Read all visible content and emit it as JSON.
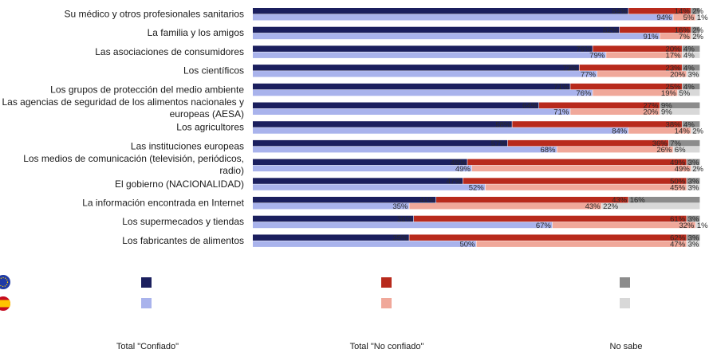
{
  "chart_data": {
    "type": "bar",
    "stacked": true,
    "orientation": "horizontal",
    "xlim": [
      0,
      100
    ],
    "categories": [
      "Su médico y otros profesionales sanitarios",
      "La familia y los amigos",
      "Las asociaciones de consumidores",
      "Los científicos",
      "Los grupos de protección del medio ambiente",
      "Las agencias de seguridad de los alimentos nacionales y europeas (AESA)",
      "Los agricultores",
      "Las instituciones europeas",
      "Los medios de comunicación (televisión, periódicos, radio)",
      "El gobierno (NACIONALIDAD)",
      "La información encontrada en Internet",
      "Los supermecados y tiendas",
      "Los fabricantes de alimentos"
    ],
    "groups": [
      {
        "flag": "eu-flag-icon",
        "series": [
          {
            "name": "Total \"Confiado\"",
            "color": "#1b1f5e",
            "values": [
              84,
              82,
              76,
              73,
              71,
              64,
              58,
              57,
              48,
              47,
              41,
              36,
              35
            ]
          },
          {
            "name": "Total \"No confiado\"",
            "color": "#b82a1c",
            "values": [
              14,
              16,
              20,
              23,
              25,
              27,
              38,
              36,
              49,
              50,
              43,
              61,
              62
            ]
          },
          {
            "name": "No sabe",
            "color": "#8c8c8c",
            "values": [
              2,
              2,
              4,
              4,
              4,
              9,
              4,
              7,
              3,
              3,
              16,
              3,
              3
            ]
          }
        ]
      },
      {
        "flag": "es-flag-icon",
        "series": [
          {
            "name": "Total \"Confiado\"",
            "color": "#a9b3ec",
            "values": [
              94,
              91,
              79,
              77,
              76,
              71,
              84,
              68,
              49,
              52,
              35,
              67,
              50
            ]
          },
          {
            "name": "Total \"No confiado\"",
            "color": "#f0a89a",
            "values": [
              5,
              7,
              17,
              20,
              19,
              20,
              14,
              26,
              49,
              45,
              43,
              32,
              47
            ]
          },
          {
            "name": "No sabe",
            "color": "#d8d8d8",
            "values": [
              1,
              2,
              4,
              3,
              5,
              9,
              2,
              6,
              2,
              3,
              22,
              1,
              3
            ]
          }
        ]
      }
    ],
    "legend": {
      "placement": "bottom",
      "labels": [
        "Total \"Confiado\"",
        "Total \"No confiado\"",
        "No sabe"
      ]
    }
  }
}
